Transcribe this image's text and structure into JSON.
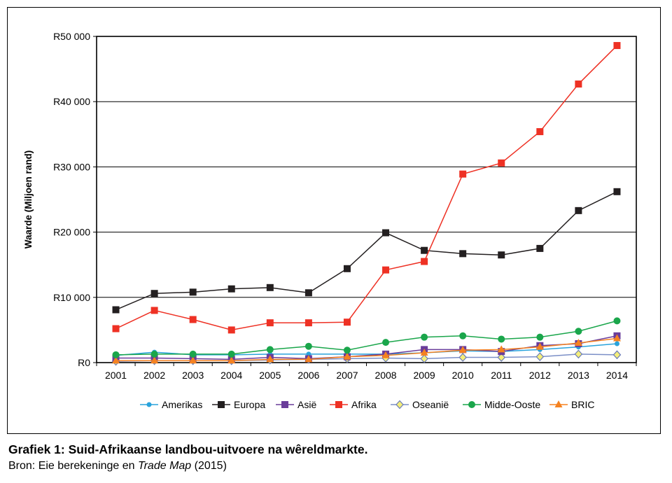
{
  "chart_data": {
    "type": "line",
    "ylabel": "Waarde (Miljoen rand)",
    "xlabel": "",
    "ylim": [
      0,
      50000
    ],
    "yticks": [
      0,
      10000,
      20000,
      30000,
      40000,
      50000
    ],
    "ytick_labels": [
      "R0",
      "R10 000",
      "R20 000",
      "R30 000",
      "R40 000",
      "R50 000"
    ],
    "x": [
      "2001",
      "2002",
      "2003",
      "2004",
      "2005",
      "2006",
      "2007",
      "2008",
      "2009",
      "2010",
      "2011",
      "2012",
      "2013",
      "2014"
    ],
    "grid": "horizontal",
    "legend_position": "bottom",
    "series": [
      {
        "name": "Amerikas",
        "color": "#29a3dc",
        "marker": "circle-small",
        "values": [
          1100,
          1600,
          1200,
          1200,
          1300,
          1300,
          1300,
          1300,
          1500,
          1800,
          1700,
          2000,
          2400,
          2900
        ]
      },
      {
        "name": "Europa",
        "color": "#231f20",
        "marker": "square",
        "values": [
          8100,
          10600,
          10800,
          11300,
          11500,
          10700,
          14400,
          19900,
          17200,
          16700,
          16500,
          17500,
          23300,
          26200
        ]
      },
      {
        "name": "Asië",
        "color": "#6a3d9a",
        "marker": "square",
        "values": [
          700,
          700,
          600,
          500,
          800,
          600,
          900,
          1300,
          2000,
          2000,
          1700,
          2600,
          2900,
          4100
        ]
      },
      {
        "name": "Afrika",
        "color": "#ee3124",
        "marker": "square",
        "values": [
          5200,
          8000,
          6600,
          5000,
          6100,
          6100,
          6200,
          14200,
          15500,
          28900,
          30600,
          35400,
          42700,
          48600
        ]
      },
      {
        "name": "Oseanië",
        "color": "#7b8fc7",
        "marker": "diamond",
        "values": [
          200,
          300,
          300,
          300,
          400,
          500,
          600,
          700,
          600,
          800,
          800,
          900,
          1300,
          1200
        ]
      },
      {
        "name": "Midde-Ooste",
        "color": "#1aa64b",
        "marker": "circle",
        "values": [
          1200,
          1300,
          1300,
          1300,
          2000,
          2500,
          1900,
          3100,
          3900,
          4100,
          3600,
          3900,
          4800,
          6400
        ]
      },
      {
        "name": "BRIC",
        "color": "#f58220",
        "marker": "triangle",
        "values": [
          300,
          300,
          300,
          300,
          500,
          500,
          900,
          1100,
          1500,
          1900,
          2000,
          2400,
          3000,
          3700
        ]
      }
    ]
  },
  "caption": "Grafiek 1: Suid-Afrikaanse landbou-uitvoere na wêreldmarkte.",
  "source": {
    "prefix": "Bron: Eie berekeninge en ",
    "italic": "Trade Map",
    "suffix": " (2015)"
  }
}
